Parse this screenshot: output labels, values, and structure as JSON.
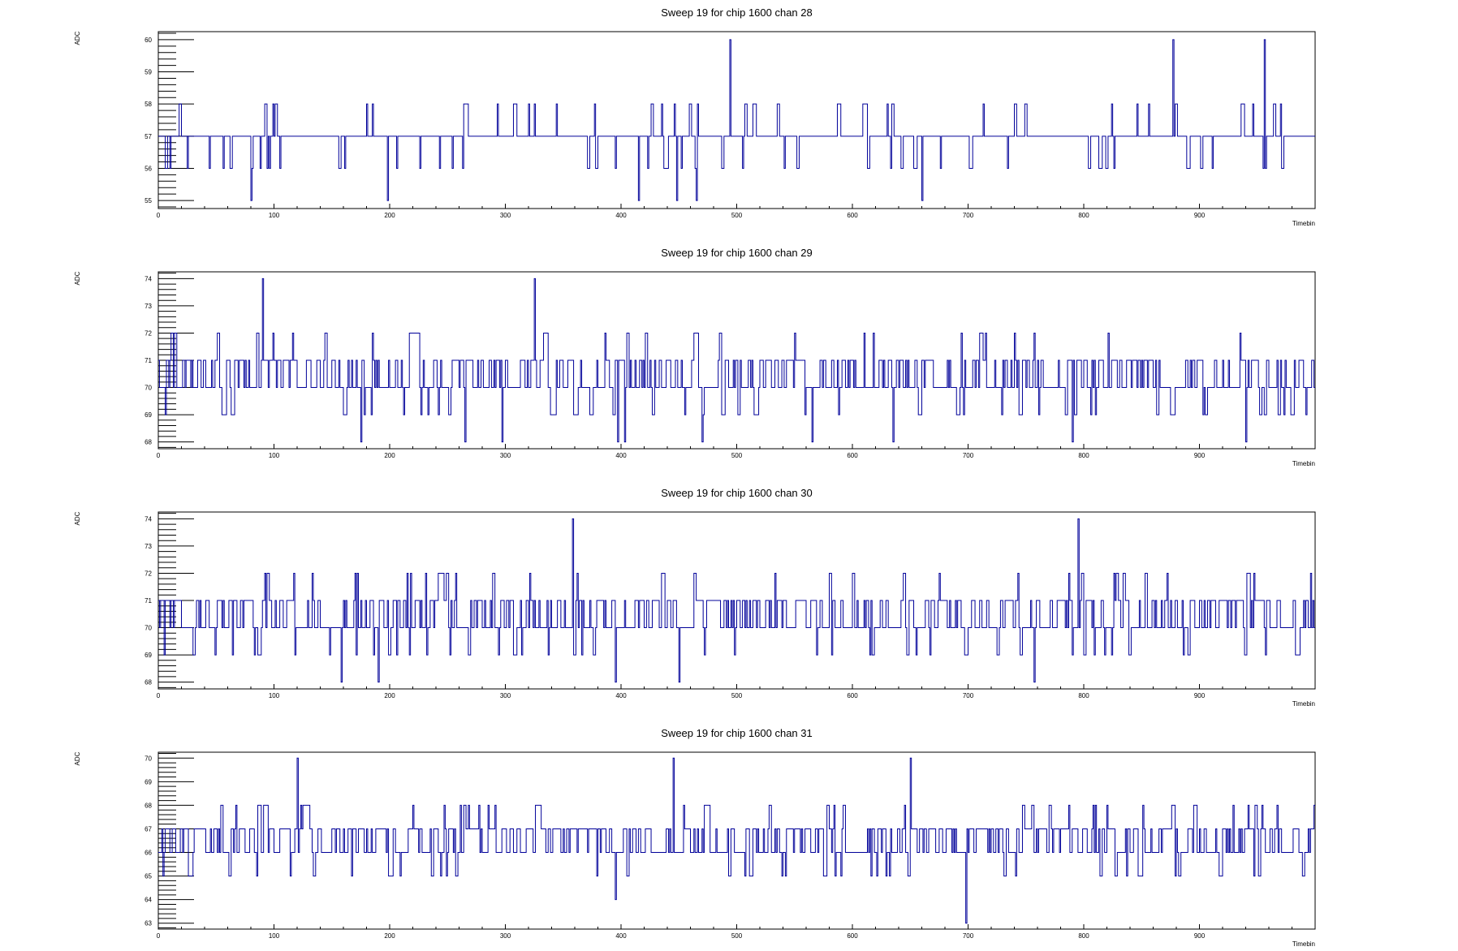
{
  "chart_data": [
    {
      "type": "line",
      "title": "Sweep 19 for chip 1600 chan 28",
      "xlabel": "Timebin",
      "ylabel": "ADC",
      "xlim": [
        0,
        1000
      ],
      "ylim": [
        54.75,
        60.25
      ],
      "xticks": [
        0,
        100,
        200,
        300,
        400,
        500,
        600,
        700,
        800,
        900
      ],
      "yticks": [
        55,
        56,
        57,
        58,
        59,
        60
      ],
      "color": "#000099",
      "series": [
        {
          "seed": 28,
          "base": 57,
          "rare_low": 55,
          "rare_high": 60,
          "spikes": [
            [
              80,
              55
            ],
            [
              198,
              55
            ],
            [
              415,
              55
            ],
            [
              448,
              55
            ],
            [
              465,
              55
            ],
            [
              494,
              60
            ],
            [
              660,
              55
            ],
            [
              877,
              60
            ],
            [
              956,
              60
            ]
          ]
        }
      ]
    },
    {
      "type": "line",
      "title": "Sweep 19 for chip 1600 chan 29",
      "xlabel": "Timebin",
      "ylabel": "ADC",
      "xlim": [
        0,
        1000
      ],
      "ylim": [
        67.75,
        74.25
      ],
      "xticks": [
        0,
        100,
        200,
        300,
        400,
        500,
        600,
        700,
        800,
        900
      ],
      "yticks": [
        68,
        69,
        70,
        71,
        72,
        73,
        74
      ],
      "color": "#000099",
      "series": [
        {
          "seed": 29,
          "base": 70.6,
          "rare_low": 68,
          "rare_high": 74,
          "spikes": [
            [
              90,
              74
            ],
            [
              175,
              68
            ],
            [
              265,
              68
            ],
            [
              297,
              68
            ],
            [
              325,
              74
            ],
            [
              397,
              68
            ],
            [
              403,
              68
            ],
            [
              470,
              68
            ],
            [
              565,
              68
            ],
            [
              635,
              68
            ],
            [
              790,
              68
            ],
            [
              940,
              68
            ]
          ]
        }
      ]
    },
    {
      "type": "line",
      "title": "Sweep 19 for chip 1600 chan 30",
      "xlabel": "Timebin",
      "ylabel": "ADC",
      "xlim": [
        0,
        1000
      ],
      "ylim": [
        67.75,
        74.25
      ],
      "xticks": [
        0,
        100,
        200,
        300,
        400,
        500,
        600,
        700,
        800,
        900
      ],
      "yticks": [
        68,
        69,
        70,
        71,
        72,
        73,
        74
      ],
      "color": "#000099",
      "series": [
        {
          "seed": 30,
          "base": 70.6,
          "rare_low": 68,
          "rare_high": 74,
          "spikes": [
            [
              158,
              68
            ],
            [
              190,
              68
            ],
            [
              358,
              74
            ],
            [
              395,
              68
            ],
            [
              450,
              68
            ],
            [
              757,
              68
            ],
            [
              795,
              74
            ]
          ]
        }
      ]
    },
    {
      "type": "line",
      "title": "Sweep 19 for chip 1600 chan 31",
      "xlabel": "Timebin",
      "ylabel": "ADC",
      "xlim": [
        0,
        1000
      ],
      "ylim": [
        62.75,
        70.25
      ],
      "xticks": [
        0,
        100,
        200,
        300,
        400,
        500,
        600,
        700,
        800,
        900
      ],
      "yticks": [
        63,
        64,
        65,
        66,
        67,
        68,
        69,
        70
      ],
      "color": "#000099",
      "series": [
        {
          "seed": 31,
          "base": 66.6,
          "rare_low": 64,
          "rare_high": 70,
          "spikes": [
            [
              120,
              70
            ],
            [
              395,
              64
            ],
            [
              445,
              70
            ],
            [
              650,
              70
            ],
            [
              698,
              63
            ]
          ]
        }
      ]
    }
  ]
}
